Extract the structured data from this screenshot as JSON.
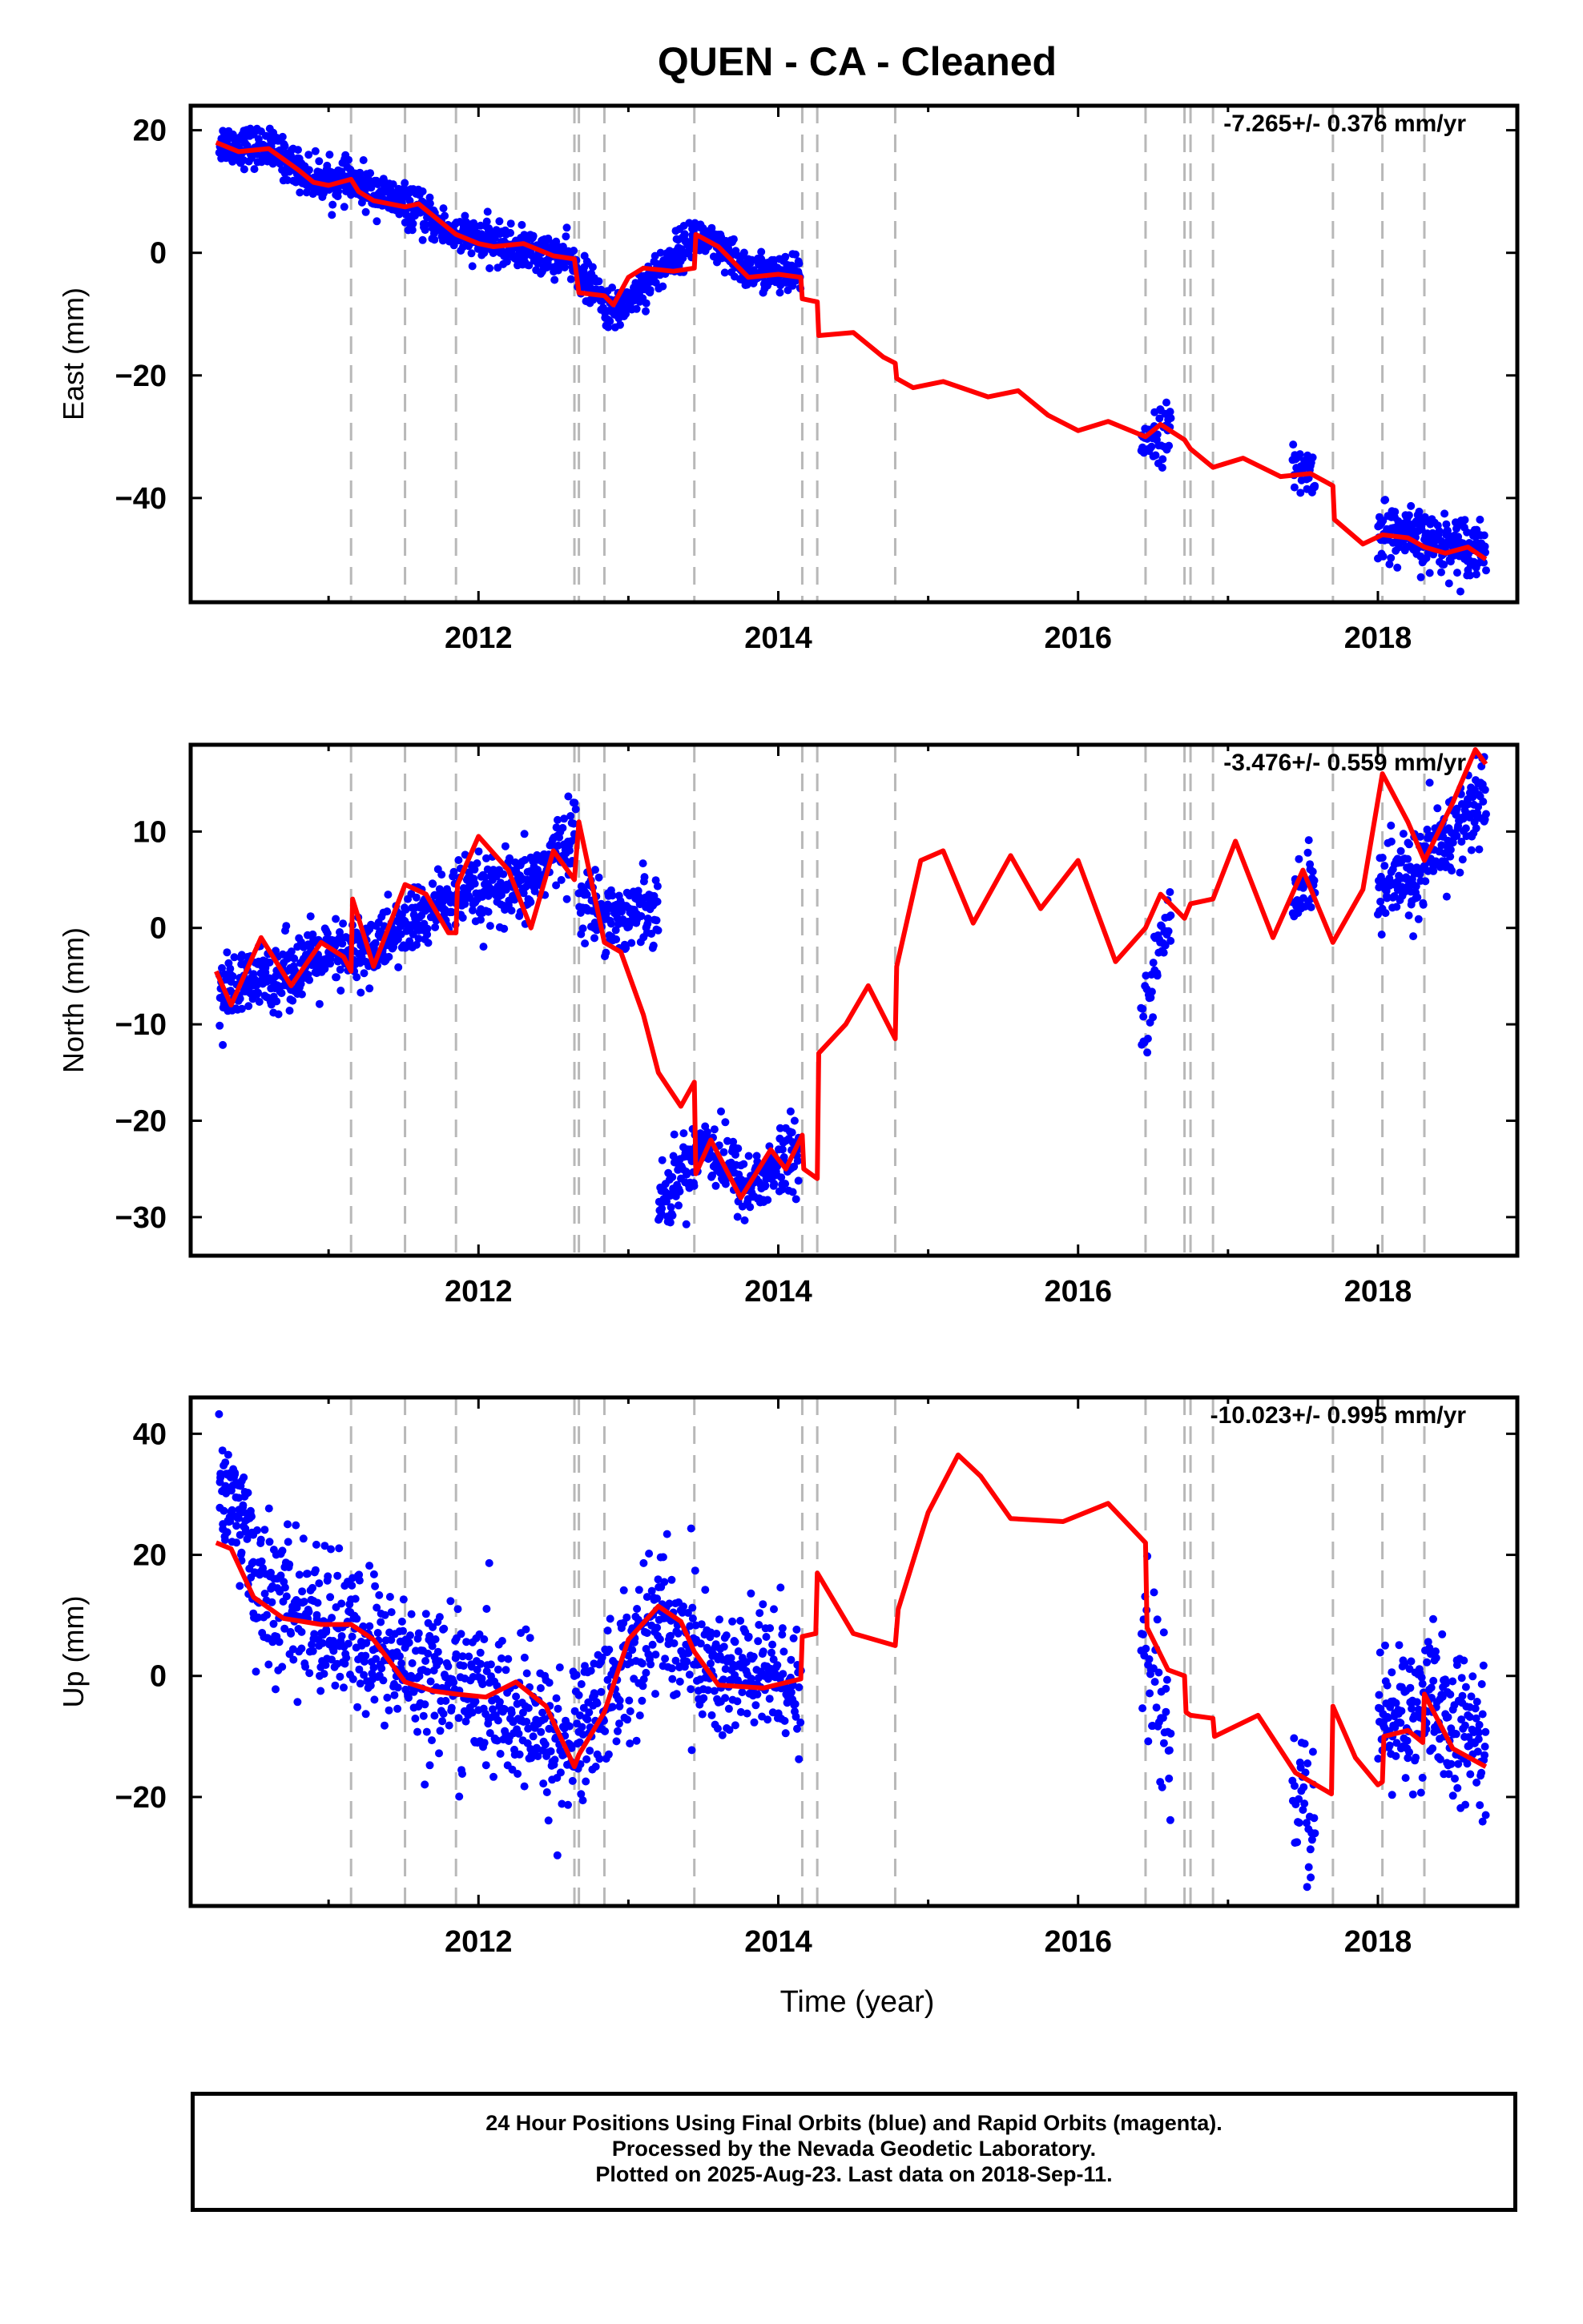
{
  "title": "QUEN  - CA - Cleaned",
  "x_label": "Time (year)",
  "footer": {
    "line1": "24 Hour Positions Using Final Orbits (blue) and Rapid Orbits (magenta).",
    "line2": "Processed by the Nevada Geodetic Laboratory.",
    "line3": "Plotted on 2025-Aug-23. Last data on 2018-Sep-11."
  },
  "colors": {
    "data": "#0000ff",
    "model": "#ff0000",
    "events": "#b8b8b8",
    "axis": "#000000"
  },
  "chart_data": [
    {
      "type": "scatter",
      "component": "East",
      "ylabel": "East (mm)",
      "rate_label": "-7.265+/- 0.376 mm/yr",
      "xlim": [
        2010.08,
        2018.93
      ],
      "ylim": [
        -57,
        24
      ],
      "yticks": [
        20,
        0,
        -20,
        -40
      ],
      "xticks": [
        2012,
        2014,
        2016,
        2018
      ],
      "grid": false,
      "events": [
        2011.15,
        2011.51,
        2011.85,
        2012.64,
        2012.67,
        2012.84,
        2013.44,
        2014.16,
        2014.26,
        2014.78,
        2016.45,
        2016.71,
        2016.75,
        2016.9,
        2017.7,
        2018.03,
        2018.31
      ],
      "model": [
        [
          2010.25,
          18
        ],
        [
          2010.4,
          16.5
        ],
        [
          2010.6,
          17
        ],
        [
          2010.8,
          13.5
        ],
        [
          2010.9,
          11.5
        ],
        [
          2011,
          11
        ],
        [
          2011.15,
          12
        ],
        [
          2011.2,
          10
        ],
        [
          2011.3,
          8.5
        ],
        [
          2011.51,
          7.5
        ],
        [
          2011.6,
          8
        ],
        [
          2011.8,
          4
        ],
        [
          2011.85,
          3
        ],
        [
          2012.0,
          1.5
        ],
        [
          2012.1,
          1
        ],
        [
          2012.3,
          1.5
        ],
        [
          2012.5,
          -0.5
        ],
        [
          2012.64,
          -1
        ],
        [
          2012.67,
          -6.5
        ],
        [
          2012.84,
          -7
        ],
        [
          2012.9,
          -8.5
        ],
        [
          2013.0,
          -4
        ],
        [
          2013.1,
          -2.5
        ],
        [
          2013.3,
          -3
        ],
        [
          2013.44,
          -2.5
        ],
        [
          2013.45,
          3
        ],
        [
          2013.6,
          1
        ],
        [
          2013.8,
          -4
        ],
        [
          2014.0,
          -3.5
        ],
        [
          2014.15,
          -4
        ],
        [
          2014.16,
          -7.5
        ],
        [
          2014.26,
          -8
        ],
        [
          2014.27,
          -13.5
        ],
        [
          2014.5,
          -13
        ],
        [
          2014.7,
          -17
        ],
        [
          2014.78,
          -18
        ],
        [
          2014.79,
          -20.5
        ],
        [
          2014.9,
          -22
        ],
        [
          2015.1,
          -21
        ],
        [
          2015.4,
          -23.5
        ],
        [
          2015.6,
          -22.5
        ],
        [
          2015.8,
          -26.5
        ],
        [
          2016.0,
          -29
        ],
        [
          2016.2,
          -27.5
        ],
        [
          2016.45,
          -30
        ],
        [
          2016.55,
          -28
        ],
        [
          2016.71,
          -30.5
        ],
        [
          2016.75,
          -32
        ],
        [
          2016.9,
          -35
        ],
        [
          2017.1,
          -33.5
        ],
        [
          2017.35,
          -36.5
        ],
        [
          2017.55,
          -36
        ],
        [
          2017.7,
          -38
        ],
        [
          2017.71,
          -43.5
        ],
        [
          2017.9,
          -47.5
        ],
        [
          2018.03,
          -46
        ],
        [
          2018.2,
          -46.5
        ],
        [
          2018.31,
          -48
        ],
        [
          2018.45,
          -49
        ],
        [
          2018.6,
          -48
        ],
        [
          2018.72,
          -50
        ]
      ],
      "data_segments": [
        {
          "x0": 2010.27,
          "x1": 2014.15,
          "knots": [
            [
              2010.27,
              18
            ],
            [
              2010.6,
              17
            ],
            [
              2010.9,
              12
            ],
            [
              2011.15,
              11.5
            ],
            [
              2011.5,
              8
            ],
            [
              2011.85,
              3
            ],
            [
              2012.2,
              1
            ],
            [
              2012.6,
              -1
            ],
            [
              2012.9,
              -10
            ],
            [
              2013.2,
              -3
            ],
            [
              2013.45,
              3
            ],
            [
              2013.8,
              -3
            ],
            [
              2014.15,
              -4
            ]
          ],
          "n": 1200,
          "noise": 1.6
        },
        {
          "x0": 2016.42,
          "x1": 2016.62,
          "knots": [
            [
              2016.42,
              -30
            ],
            [
              2016.62,
              -29
            ]
          ],
          "n": 45,
          "noise": 2.2
        },
        {
          "x0": 2017.43,
          "x1": 2017.58,
          "knots": [
            [
              2017.43,
              -35
            ],
            [
              2017.58,
              -36
            ]
          ],
          "n": 35,
          "noise": 2.0
        },
        {
          "x0": 2018.0,
          "x1": 2018.72,
          "knots": [
            [
              2018.0,
              -45
            ],
            [
              2018.3,
              -47
            ],
            [
              2018.72,
              -48
            ]
          ],
          "n": 220,
          "noise": 2.3
        }
      ]
    },
    {
      "type": "scatter",
      "component": "North",
      "ylabel": "North (mm)",
      "rate_label": "-3.476+/- 0.559 mm/yr",
      "xlim": [
        2010.08,
        2018.93
      ],
      "ylim": [
        -34,
        19
      ],
      "yticks": [
        10,
        0,
        -10,
        -20,
        -30
      ],
      "xticks": [
        2012,
        2014,
        2016,
        2018
      ],
      "grid": false,
      "events": [
        2011.15,
        2011.51,
        2011.85,
        2012.64,
        2012.67,
        2012.84,
        2013.44,
        2014.16,
        2014.26,
        2014.78,
        2016.45,
        2016.71,
        2016.75,
        2016.9,
        2017.7,
        2018.03,
        2018.31
      ],
      "model": [
        [
          2010.25,
          -4.5
        ],
        [
          2010.35,
          -8
        ],
        [
          2010.55,
          -1
        ],
        [
          2010.75,
          -6
        ],
        [
          2010.95,
          -1.5
        ],
        [
          2011.1,
          -3
        ],
        [
          2011.15,
          -4.5
        ],
        [
          2011.16,
          3
        ],
        [
          2011.3,
          -4
        ],
        [
          2011.51,
          4.5
        ],
        [
          2011.65,
          3.5
        ],
        [
          2011.8,
          -0.5
        ],
        [
          2011.85,
          -0.5
        ],
        [
          2011.86,
          4.5
        ],
        [
          2012.0,
          9.5
        ],
        [
          2012.2,
          6
        ],
        [
          2012.35,
          0
        ],
        [
          2012.5,
          8
        ],
        [
          2012.64,
          5
        ],
        [
          2012.67,
          11
        ],
        [
          2012.84,
          -1.5
        ],
        [
          2012.95,
          -2.5
        ],
        [
          2013.1,
          -9
        ],
        [
          2013.2,
          -15
        ],
        [
          2013.35,
          -18.5
        ],
        [
          2013.44,
          -16
        ],
        [
          2013.45,
          -25.5
        ],
        [
          2013.55,
          -22
        ],
        [
          2013.75,
          -28
        ],
        [
          2013.95,
          -23
        ],
        [
          2014.05,
          -25
        ],
        [
          2014.16,
          -21.5
        ],
        [
          2014.17,
          -25
        ],
        [
          2014.26,
          -26
        ],
        [
          2014.27,
          -13
        ],
        [
          2014.45,
          -10
        ],
        [
          2014.6,
          -6
        ],
        [
          2014.78,
          -11.5
        ],
        [
          2014.79,
          -4
        ],
        [
          2014.95,
          7
        ],
        [
          2015.1,
          8
        ],
        [
          2015.3,
          0.5
        ],
        [
          2015.55,
          7.5
        ],
        [
          2015.75,
          2
        ],
        [
          2016.0,
          7
        ],
        [
          2016.25,
          -3.5
        ],
        [
          2016.45,
          0
        ],
        [
          2016.55,
          3.5
        ],
        [
          2016.71,
          1
        ],
        [
          2016.75,
          2.5
        ],
        [
          2016.9,
          3
        ],
        [
          2017.05,
          9
        ],
        [
          2017.3,
          -1
        ],
        [
          2017.5,
          6
        ],
        [
          2017.7,
          -1.5
        ],
        [
          2017.9,
          4
        ],
        [
          2018.03,
          16
        ],
        [
          2018.2,
          11
        ],
        [
          2018.31,
          7
        ],
        [
          2018.5,
          13
        ],
        [
          2018.65,
          18.5
        ],
        [
          2018.72,
          17
        ]
      ],
      "data_segments": [
        {
          "x0": 2010.27,
          "x1": 2012.65,
          "knots": [
            [
              2010.27,
              -7
            ],
            [
              2010.8,
              -4
            ],
            [
              2011.3,
              -2
            ],
            [
              2011.8,
              3
            ],
            [
              2012.3,
              4
            ],
            [
              2012.65,
              10
            ]
          ],
          "n": 700,
          "noise": 1.8
        },
        {
          "x0": 2012.67,
          "x1": 2013.2,
          "knots": [
            [
              2012.67,
              3
            ],
            [
              2012.95,
              1
            ],
            [
              2013.2,
              3
            ]
          ],
          "n": 150,
          "noise": 1.8
        },
        {
          "x0": 2013.2,
          "x1": 2014.15,
          "knots": [
            [
              2013.2,
              -29
            ],
            [
              2013.5,
              -22
            ],
            [
              2013.8,
              -27
            ],
            [
              2014.15,
              -23
            ]
          ],
          "n": 280,
          "noise": 1.8
        },
        {
          "x0": 2016.42,
          "x1": 2016.62,
          "knots": [
            [
              2016.42,
              -10
            ],
            [
              2016.62,
              2
            ]
          ],
          "n": 45,
          "noise": 1.8
        },
        {
          "x0": 2017.43,
          "x1": 2017.58,
          "knots": [
            [
              2017.43,
              4
            ],
            [
              2017.58,
              5
            ]
          ],
          "n": 35,
          "noise": 1.8
        },
        {
          "x0": 2018.0,
          "x1": 2018.72,
          "knots": [
            [
              2018.0,
              4
            ],
            [
              2018.3,
              6
            ],
            [
              2018.72,
              14
            ]
          ],
          "n": 220,
          "noise": 2.3
        }
      ]
    },
    {
      "type": "scatter",
      "component": "Up",
      "ylabel": "Up (mm)",
      "rate_label": "-10.023+/- 0.995 mm/yr",
      "xlim": [
        2010.08,
        2018.93
      ],
      "ylim": [
        -38,
        46
      ],
      "yticks": [
        40,
        20,
        0,
        -20
      ],
      "xticks": [
        2012,
        2014,
        2016,
        2018
      ],
      "grid": false,
      "events": [
        2011.15,
        2011.51,
        2011.85,
        2012.64,
        2012.67,
        2012.84,
        2013.44,
        2014.16,
        2014.26,
        2014.78,
        2016.45,
        2016.71,
        2016.75,
        2016.9,
        2017.7,
        2018.03,
        2018.31
      ],
      "model": [
        [
          2010.25,
          22
        ],
        [
          2010.35,
          21
        ],
        [
          2010.5,
          13
        ],
        [
          2010.7,
          9.5
        ],
        [
          2010.95,
          8.5
        ],
        [
          2011.15,
          8.5
        ],
        [
          2011.3,
          6
        ],
        [
          2011.51,
          -1
        ],
        [
          2011.7,
          -2.5
        ],
        [
          2011.85,
          -3
        ],
        [
          2012.05,
          -3.5
        ],
        [
          2012.25,
          -1
        ],
        [
          2012.45,
          -5
        ],
        [
          2012.64,
          -15
        ],
        [
          2012.67,
          -13
        ],
        [
          2012.84,
          -6
        ],
        [
          2013.0,
          6
        ],
        [
          2013.2,
          11.5
        ],
        [
          2013.35,
          9
        ],
        [
          2013.44,
          4
        ],
        [
          2013.6,
          -1.5
        ],
        [
          2013.9,
          -2
        ],
        [
          2014.15,
          -0.5
        ],
        [
          2014.16,
          6.5
        ],
        [
          2014.25,
          7
        ],
        [
          2014.26,
          17
        ],
        [
          2014.5,
          7
        ],
        [
          2014.78,
          5
        ],
        [
          2014.8,
          11
        ],
        [
          2015.0,
          27
        ],
        [
          2015.2,
          36.5
        ],
        [
          2015.35,
          33
        ],
        [
          2015.55,
          26
        ],
        [
          2015.9,
          25.5
        ],
        [
          2016.2,
          28.5
        ],
        [
          2016.45,
          22
        ],
        [
          2016.46,
          8
        ],
        [
          2016.6,
          1
        ],
        [
          2016.71,
          0
        ],
        [
          2016.72,
          -6
        ],
        [
          2016.75,
          -6.5
        ],
        [
          2016.9,
          -7
        ],
        [
          2016.91,
          -10
        ],
        [
          2017.2,
          -6.5
        ],
        [
          2017.45,
          -16
        ],
        [
          2017.69,
          -19.5
        ],
        [
          2017.7,
          -5
        ],
        [
          2017.85,
          -13.5
        ],
        [
          2018.0,
          -18
        ],
        [
          2018.03,
          -17.5
        ],
        [
          2018.04,
          -10
        ],
        [
          2018.2,
          -9
        ],
        [
          2018.3,
          -11
        ],
        [
          2018.31,
          -3
        ],
        [
          2018.5,
          -12
        ],
        [
          2018.72,
          -15
        ]
      ],
      "data_segments": [
        {
          "x0": 2010.27,
          "x1": 2010.5,
          "knots": [
            [
              2010.27,
              33
            ],
            [
              2010.5,
              22
            ]
          ],
          "n": 90,
          "noise": 5.0
        },
        {
          "x0": 2010.5,
          "x1": 2014.15,
          "knots": [
            [
              2010.5,
              14
            ],
            [
              2011.0,
              8
            ],
            [
              2011.5,
              2
            ],
            [
              2012.0,
              -3
            ],
            [
              2012.6,
              -12
            ],
            [
              2013.2,
              10
            ],
            [
              2013.6,
              0
            ],
            [
              2014.15,
              0
            ]
          ],
          "n": 1000,
          "noise": 6.0
        },
        {
          "x0": 2016.42,
          "x1": 2016.62,
          "knots": [
            [
              2016.42,
              5
            ],
            [
              2016.62,
              -10
            ]
          ],
          "n": 45,
          "noise": 6.0
        },
        {
          "x0": 2017.43,
          "x1": 2017.58,
          "knots": [
            [
              2017.43,
              -20
            ],
            [
              2017.58,
              -25
            ]
          ],
          "n": 35,
          "noise": 6.0
        },
        {
          "x0": 2018.0,
          "x1": 2018.72,
          "knots": [
            [
              2018.0,
              -8
            ],
            [
              2018.3,
              -5
            ],
            [
              2018.72,
              -12
            ]
          ],
          "n": 220,
          "noise": 6.0
        }
      ]
    }
  ]
}
